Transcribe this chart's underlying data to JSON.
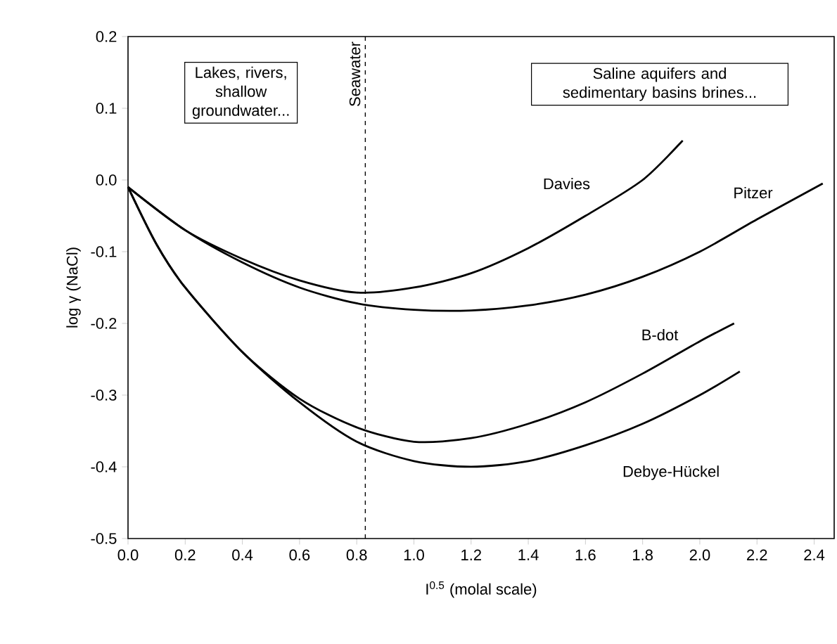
{
  "chart_data": {
    "type": "line",
    "xlabel": "I$^{0.5}$ (molal scale)",
    "ylabel": "log γ (NaCl)",
    "xlim": [
      0,
      2.47
    ],
    "ylim": [
      -0.5,
      0.2
    ],
    "xticks": [
      {
        "value": 0,
        "label": "0.0"
      },
      0.2,
      0.4,
      0.6,
      0.8,
      {
        "value": 1,
        "label": "1.0"
      },
      1.2,
      1.4,
      1.6,
      1.8,
      {
        "value": 2,
        "label": "2.0"
      },
      2.2,
      2.4
    ],
    "yticks": [
      -0.5,
      -0.4,
      -0.3,
      -0.2,
      -0.1,
      {
        "value": 0,
        "label": "0.0"
      },
      0.1,
      0.2
    ],
    "grid": false,
    "legend": false,
    "marker": "none",
    "line_style": "solid",
    "series": [
      {
        "name": "Davies",
        "color": "#000000",
        "x": [
          0,
          0.2,
          0.4,
          0.6,
          0.8,
          1.0,
          1.2,
          1.4,
          1.6,
          1.8,
          1.94
        ],
        "values": [
          -0.01,
          -0.07,
          -0.11,
          -0.14,
          -0.157,
          -0.15,
          -0.13,
          -0.095,
          -0.05,
          0.0,
          0.055
        ]
      },
      {
        "name": "Pitzer",
        "color": "#000000",
        "x": [
          0,
          0.2,
          0.4,
          0.6,
          0.8,
          1.0,
          1.2,
          1.4,
          1.6,
          1.8,
          2.0,
          2.2,
          2.43
        ],
        "values": [
          -0.01,
          -0.07,
          -0.115,
          -0.15,
          -0.172,
          -0.181,
          -0.182,
          -0.175,
          -0.16,
          -0.135,
          -0.1,
          -0.055,
          -0.005
        ]
      },
      {
        "name": "B-dot",
        "color": "#000000",
        "x": [
          0,
          0.1,
          0.2,
          0.4,
          0.6,
          0.8,
          1.0,
          1.2,
          1.4,
          1.6,
          1.8,
          2.0,
          2.12
        ],
        "values": [
          -0.01,
          -0.09,
          -0.15,
          -0.24,
          -0.305,
          -0.345,
          -0.365,
          -0.36,
          -0.34,
          -0.31,
          -0.27,
          -0.225,
          -0.2
        ]
      },
      {
        "name": "Debye-Hückel",
        "color": "#000000",
        "x": [
          0,
          0.1,
          0.2,
          0.4,
          0.6,
          0.8,
          1.0,
          1.2,
          1.4,
          1.6,
          1.8,
          2.0,
          2.14
        ],
        "values": [
          -0.01,
          -0.09,
          -0.15,
          -0.24,
          -0.31,
          -0.365,
          -0.392,
          -0.4,
          -0.392,
          -0.37,
          -0.34,
          -0.3,
          -0.267
        ]
      }
    ],
    "ref_lines": [
      {
        "axis": "x",
        "value": 0.83,
        "label": "Seawater",
        "color": "#000000",
        "line_style": "dashed"
      }
    ],
    "annotations": [
      "Lakes, rivers, shallow groundwater...",
      "Saline aquifers and sedimentary basins brines..."
    ]
  }
}
